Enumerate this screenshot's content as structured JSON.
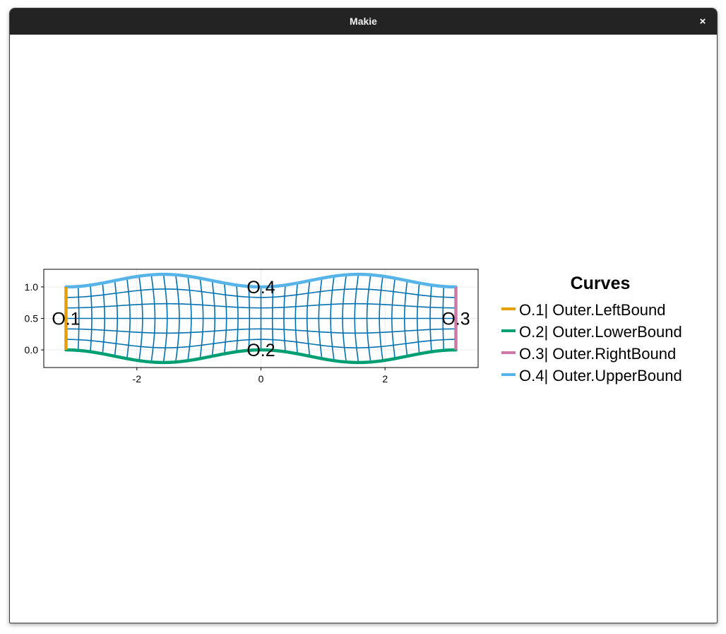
{
  "window": {
    "title": "Makie",
    "close_glyph": "×"
  },
  "colors": {
    "mesh": "#0072b2",
    "left_bound": "#e69f00",
    "lower_bound": "#009e73",
    "right_bound": "#cc79a7",
    "upper_bound": "#56b4e9",
    "frame": "#000000",
    "grid": "#ebebeb"
  },
  "chart_data": {
    "type": "line",
    "title": "",
    "xlabel": "",
    "ylabel": "",
    "xlim": [
      -3.5,
      3.5
    ],
    "ylim": [
      -0.28,
      1.28
    ],
    "x_ticks": [
      -2,
      0,
      2
    ],
    "x_tick_labels": [
      "-2",
      "0",
      "2"
    ],
    "y_ticks": [
      0.0,
      0.5,
      1.0
    ],
    "y_tick_labels": [
      "0.0",
      "0.5",
      "1.0"
    ],
    "grid": true,
    "legend": {
      "title": "Curves",
      "placement": "right",
      "entries": [
        "O.1| Outer.LeftBound",
        "O.2| Outer.LowerBound",
        "O.3| Outer.RightBound",
        "O.4| Outer.UpperBound"
      ]
    },
    "curves": [
      {
        "label": "O.1",
        "name": "O.1| Outer.LeftBound",
        "x": [
          -3.1416,
          -3.1416
        ],
        "y": [
          0.0,
          1.0
        ]
      },
      {
        "label": "O.2",
        "name": "O.2| Outer.LowerBound",
        "function": "-0.2*sin(x)^2",
        "x_range": [
          -3.1416,
          3.1416
        ]
      },
      {
        "label": "O.3",
        "name": "O.3| Outer.RightBound",
        "x": [
          3.1416,
          3.1416
        ],
        "y": [
          0.0,
          1.0
        ]
      },
      {
        "label": "O.4",
        "name": "O.4| Outer.UpperBound",
        "function": "1+0.2*sin(x)^2",
        "x_range": [
          -3.1416,
          3.1416
        ]
      }
    ],
    "mesh": {
      "columns": 32,
      "rows": 6
    }
  }
}
